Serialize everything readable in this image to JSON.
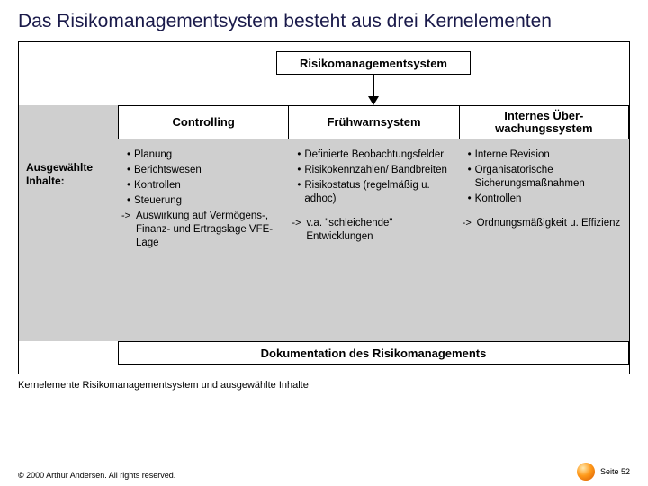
{
  "title": "Das Risikomanagementsystem besteht aus drei Kernelementen",
  "topbox": "Risikomanagementsystem",
  "sidebar_label": "Ausgewählte Inhalte:",
  "columns": [
    {
      "head": "Controlling",
      "items": [
        {
          "t": "bullet",
          "text": "Planung"
        },
        {
          "t": "bullet",
          "text": "Berichtswesen"
        },
        {
          "t": "bullet",
          "text": "Kontrollen"
        },
        {
          "t": "bullet",
          "text": "Steuerung"
        },
        {
          "t": "arrowitem",
          "text": "Auswirkung auf Vermögens-, Finanz- und Ertragslage VFE-Lage"
        }
      ]
    },
    {
      "head": "Frühwarnsystem",
      "items": [
        {
          "t": "bullet",
          "text": "Definierte Beobach­tungsfelder"
        },
        {
          "t": "bullet",
          "text": "Risikokennzahlen/ Bandbreiten"
        },
        {
          "t": "bullet",
          "text": "Risikostatus (regel­mäßig u. adhoc)"
        },
        {
          "t": "spacer",
          "text": ""
        },
        {
          "t": "arrowitem",
          "text": "v.a. \"schleichende\" Entwicklungen"
        }
      ]
    },
    {
      "head": "Internes Über-wachungssystem",
      "items": [
        {
          "t": "bullet",
          "text": "Interne Revision"
        },
        {
          "t": "bullet",
          "text": "Organisatorische Sicherungsmaß­nahmen"
        },
        {
          "t": "bullet",
          "text": "Kontrollen"
        },
        {
          "t": "spacer",
          "text": ""
        },
        {
          "t": "arrowitem",
          "text": "Ordnungsmäßig­keit u. Effizienz"
        }
      ]
    }
  ],
  "docbox": "Dokumentation des Risikomanagements",
  "caption": "Kernelemente Risikomanagementsystem und ausgewählte Inhalte",
  "footer": {
    "copyright_symbol": "©",
    "copyright_text": "2000 Arthur Andersen. All rights reserved.",
    "page_label": "Seite 52"
  },
  "colors": {
    "title": "#1a1a4a",
    "panel_bg": "#cfcfcf",
    "border": "#000000",
    "page_bg": "#ffffff"
  }
}
